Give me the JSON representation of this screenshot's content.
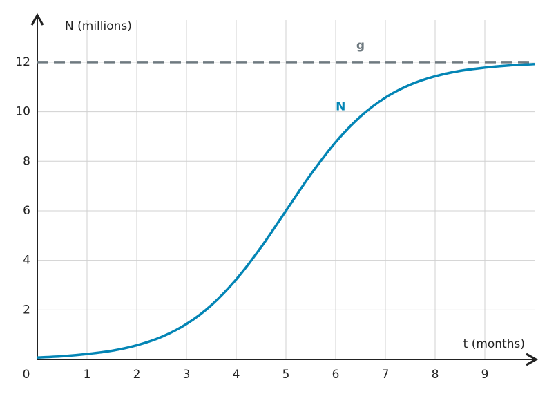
{
  "chart_data": {
    "type": "line",
    "y_label": "N (millions)",
    "x_label": "t (months)",
    "x": [
      0,
      0.5,
      1,
      1.5,
      2,
      2.5,
      3,
      3.5,
      4,
      4.5,
      5,
      5.5,
      6,
      6.5,
      7,
      7.5,
      8,
      8.5,
      9,
      9.5,
      10
    ],
    "series": [
      {
        "name": "N",
        "color": "#0385b5",
        "values": [
          0.08,
          0.13,
          0.22,
          0.35,
          0.57,
          0.91,
          1.43,
          2.19,
          3.23,
          4.53,
          6,
          7.47,
          8.77,
          9.81,
          10.57,
          11.09,
          11.43,
          11.65,
          11.78,
          11.87,
          11.92
        ]
      }
    ],
    "asymptote": {
      "name": "g",
      "value": 12,
      "color": "#6f7a80"
    },
    "xlim": [
      0,
      10
    ],
    "ylim": [
      0,
      13.7
    ],
    "xticks": [
      0,
      1,
      2,
      3,
      4,
      5,
      6,
      7,
      8,
      9
    ],
    "yticks": [
      2,
      4,
      6,
      8,
      10,
      12
    ],
    "grid": true
  }
}
